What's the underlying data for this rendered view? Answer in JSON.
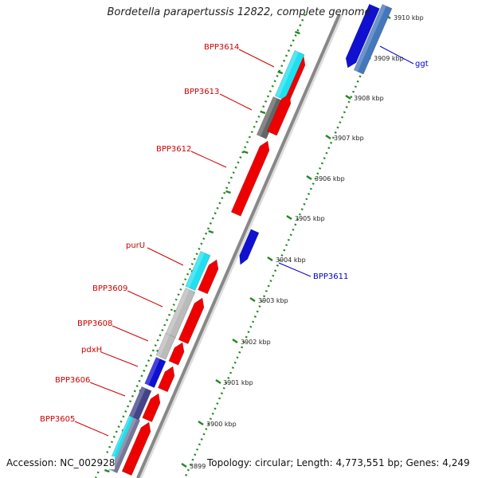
{
  "title": "Bordetella parapertussis 12822, complete genome",
  "footer": {
    "accession": "Accession: NC_002928",
    "summary": "Topology: circular; Length: 4,773,551 bp; Genes: 4,249"
  },
  "colors": {
    "forward_gene": "#ee0000",
    "reverse_gene": "#1010d0",
    "feature_cyan": "#20e0f0",
    "feature_gray": "#bbbbbb",
    "feature_dark_gray": "#666666",
    "feature_navy": "#444488",
    "backbone": "#999999",
    "ruler": "#228822",
    "label_forward": "#cc0000",
    "label_reverse": "#0000cc"
  },
  "axis": {
    "unit": "kbp",
    "ticks": [
      "3899 kbp",
      "3900 kbp",
      "3901 kbp",
      "3902 kbp",
      "3903 kbp",
      "3904 kbp",
      "3905 kbp",
      "3906 kbp",
      "3907 kbp",
      "3908 kbp",
      "3909 kbp",
      "3910 kbp"
    ]
  },
  "gene_labels": [
    {
      "name": "BPP3614",
      "strand": "forward"
    },
    {
      "name": "BPP3613",
      "strand": "forward"
    },
    {
      "name": "BPP3612",
      "strand": "forward"
    },
    {
      "name": "purU",
      "strand": "forward"
    },
    {
      "name": "BPP3609",
      "strand": "forward"
    },
    {
      "name": "BPP3608",
      "strand": "forward"
    },
    {
      "name": "pdxH",
      "strand": "forward"
    },
    {
      "name": "BPP3606",
      "strand": "forward"
    },
    {
      "name": "BPP3605",
      "strand": "forward"
    },
    {
      "name": "BPP3611",
      "strand": "reverse"
    },
    {
      "name": "ggt",
      "strand": "reverse"
    }
  ]
}
